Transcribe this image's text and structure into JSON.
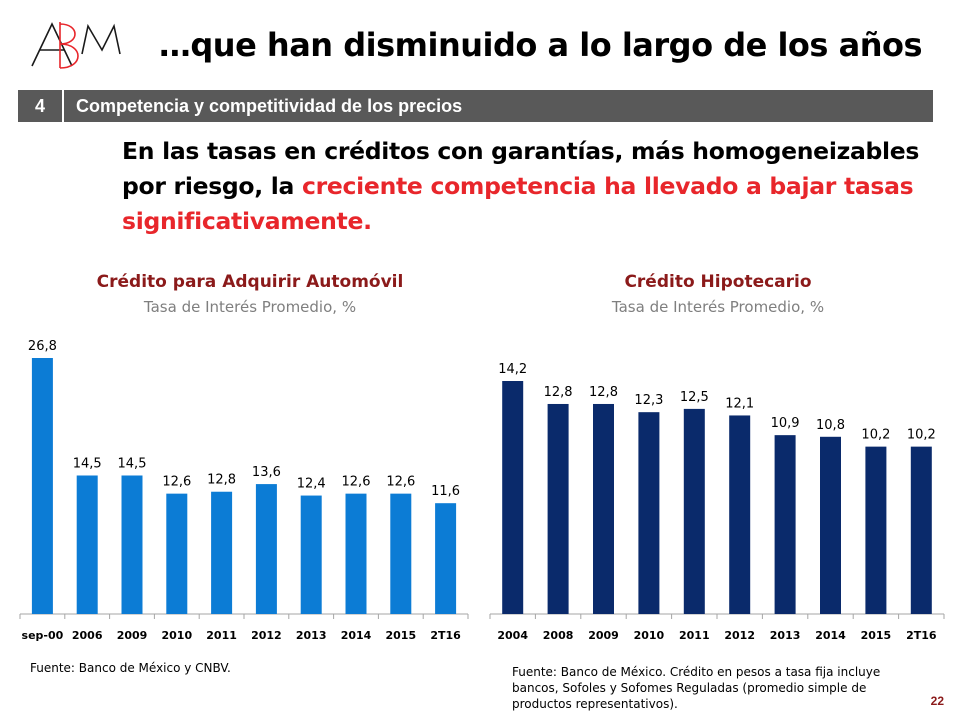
{
  "slide": {
    "title": "…que han disminuido a lo largo de los años",
    "logo_text": "ABM",
    "section_number": "4",
    "section_label": "Competencia y competitividad de los precios",
    "headline_before": "En las tasas en créditos con garantías, más homogeneizables por riesgo, la ",
    "headline_highlight": "creciente competencia ha llevado a bajar tasas significativamente.",
    "page_number": "22"
  },
  "colors": {
    "auto_bar": "#0c7cd5",
    "mortgage_bar": "#0a2a6b",
    "highlight": "#e8262b",
    "chart_title": "#8b1a1a",
    "section_bar": "#595959"
  },
  "chart_data": [
    {
      "type": "bar",
      "title": "Crédito para Adquirir Automóvil",
      "subtitle": "Tasa de Interés Promedio, %",
      "categories": [
        "sep-00",
        "2006",
        "2009",
        "2010",
        "2011",
        "2012",
        "2013",
        "2014",
        "2015",
        "2T16"
      ],
      "values": [
        26.8,
        14.5,
        14.5,
        12.6,
        12.8,
        13.6,
        12.4,
        12.6,
        12.6,
        11.6
      ],
      "value_labels": [
        "26,8",
        "14,5",
        "14,5",
        "12,6",
        "12,8",
        "13,6",
        "12,4",
        "12,6",
        "12,6",
        "11,6"
      ],
      "source": "Fuente: Banco de México y CNBV.",
      "ylim": [
        0,
        27
      ],
      "grid": false,
      "legend": "none"
    },
    {
      "type": "bar",
      "title": "Crédito Hipotecario",
      "subtitle": "Tasa de Interés Promedio, %",
      "categories": [
        "2004",
        "2008",
        "2009",
        "2010",
        "2011",
        "2012",
        "2013",
        "2014",
        "2015",
        "2T16"
      ],
      "values": [
        14.2,
        12.8,
        12.8,
        12.3,
        12.5,
        12.1,
        10.9,
        10.8,
        10.2,
        10.2
      ],
      "value_labels": [
        "14,2",
        "12,8",
        "12,8",
        "12,3",
        "12,5",
        "12,1",
        "10,9",
        "10,8",
        "10,2",
        "10,2"
      ],
      "source": "Fuente: Banco de México. Crédito en pesos a tasa fija incluye bancos, Sofoles y Sofomes Reguladas (promedio simple de productos representativos).",
      "ylim": [
        0,
        15
      ],
      "grid": false,
      "legend": "none"
    }
  ]
}
